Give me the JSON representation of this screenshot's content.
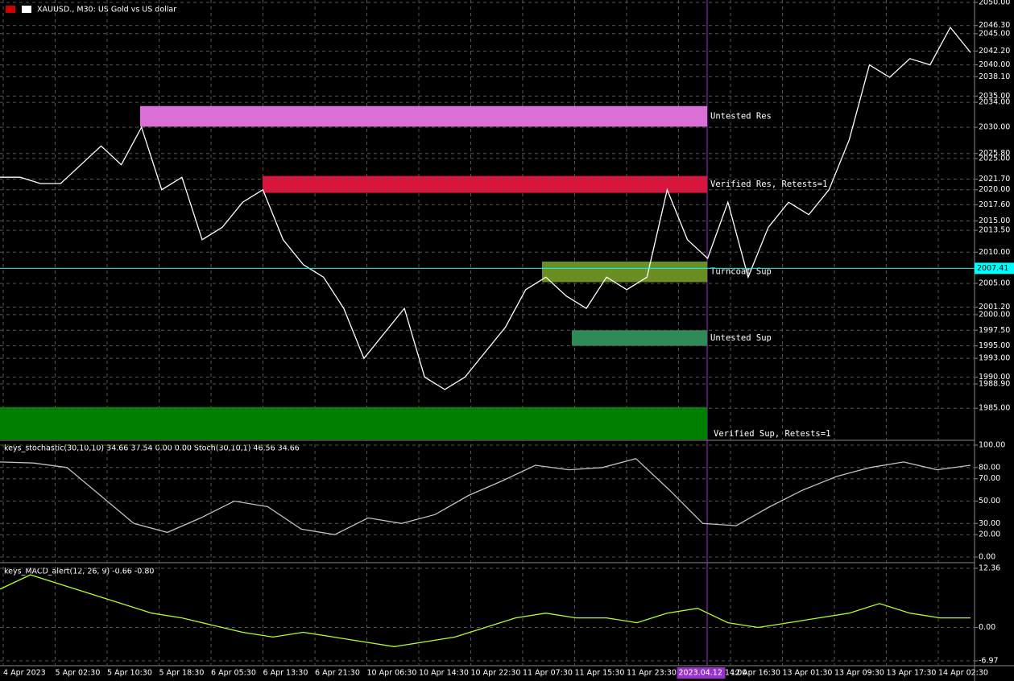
{
  "header": {
    "title": "XAUUSD., M30:  US Gold vs US dollar"
  },
  "price_panel": {
    "ylim": [
      1980,
      2050
    ],
    "yticks": [
      {
        "value": 2050,
        "label": "2050.00"
      },
      {
        "value": 2046.3,
        "label": "2046.30"
      },
      {
        "value": 2045,
        "label": "2045.00"
      },
      {
        "value": 2042.2,
        "label": "2042.20"
      },
      {
        "value": 2040,
        "label": "2040.00"
      },
      {
        "value": 2038.1,
        "label": "2038.10"
      },
      {
        "value": 2035,
        "label": "2035.00"
      },
      {
        "value": 2034,
        "label": "2034.00"
      },
      {
        "value": 2030,
        "label": "2030.00"
      },
      {
        "value": 2025.8,
        "label": "2025.80"
      },
      {
        "value": 2025,
        "label": "2025.00"
      },
      {
        "value": 2021.7,
        "label": "2021.70"
      },
      {
        "value": 2020,
        "label": "2020.00"
      },
      {
        "value": 2017.6,
        "label": "2017.60"
      },
      {
        "value": 2015,
        "label": "2015.00"
      },
      {
        "value": 2013.5,
        "label": "2013.50"
      },
      {
        "value": 2010,
        "label": "2010.00"
      },
      {
        "value": 2005,
        "label": "2005.00"
      },
      {
        "value": 2001.2,
        "label": "2001.20"
      },
      {
        "value": 2000,
        "label": "2000.00"
      },
      {
        "value": 1997.5,
        "label": "1997.50"
      },
      {
        "value": 1995,
        "label": "1995.00"
      },
      {
        "value": 1993,
        "label": "1993.00"
      },
      {
        "value": 1990,
        "label": "1990.00"
      },
      {
        "value": 1988.9,
        "label": "1988.90"
      },
      {
        "value": 1985,
        "label": "1985.00"
      }
    ],
    "current_price": {
      "value": 2007.41,
      "label": "2007.41"
    },
    "close": [
      2022,
      2022,
      2021,
      2021,
      2024,
      2027,
      2024,
      2030,
      2020,
      2022,
      2012,
      2014,
      2018,
      2020,
      2012,
      2008,
      2006,
      2001,
      1993,
      1997,
      2001,
      1990,
      1988,
      1990,
      1994,
      1998,
      2004,
      2006,
      2003,
      2001,
      2006,
      2004,
      2006,
      2020,
      2012,
      2009,
      2018,
      2006,
      2014,
      2018,
      2016,
      2020,
      2028,
      2040,
      2038,
      2041,
      2040,
      2046,
      2042
    ],
    "zones": [
      {
        "label": "Untested Res",
        "lo": 2030.1,
        "hi": 2033.4,
        "color": "#da70d6"
      },
      {
        "label": "Verified Res, Retests=1",
        "lo": 2019.5,
        "hi": 2022.2,
        "color": "#dc143c"
      },
      {
        "label": "Turncoat Sup",
        "lo": 2005.2,
        "hi": 2008.5,
        "color": "#6b8e23"
      },
      {
        "label": "Untested Sup",
        "lo": 1995,
        "hi": 1997.5,
        "color": "#2e8b57"
      },
      {
        "label": "Verified Sup, Retests=1",
        "lo": 1980,
        "hi": 1985.2,
        "color": "#008000"
      }
    ]
  },
  "stoch_panel": {
    "title": "keys_stochastic(30,10,10) 34.66 37.54 0.00 0.00 Stoch(30,10,1) 46.56 34.66",
    "ylim": [
      0,
      100
    ],
    "yticks": [
      {
        "value": 100,
        "label": "100.00"
      },
      {
        "value": 80,
        "label": "80.00"
      },
      {
        "value": 70,
        "label": "70.00"
      },
      {
        "value": 50,
        "label": "50.00"
      },
      {
        "value": 30,
        "label": "30.00"
      },
      {
        "value": 20,
        "label": "20.00"
      },
      {
        "value": 0,
        "label": "0.00"
      }
    ],
    "values": [
      85,
      84,
      80,
      55,
      30,
      22,
      35,
      50,
      45,
      25,
      20,
      35,
      30,
      38,
      55,
      68,
      82,
      78,
      80,
      88,
      60,
      30,
      28,
      45,
      60,
      72,
      80,
      85,
      78,
      82
    ]
  },
  "macd_panel": {
    "title": "keys_MACD_alert(12, 26, 9) -0.66 -0.80",
    "ylim": [
      -6.97,
      12.36
    ],
    "yticks": [
      12.36,
      {
        "value": 0,
        "label": "0.00"
      },
      -6.97
    ],
    "values": [
      8,
      11,
      9,
      7,
      5,
      3,
      2,
      0.5,
      -1,
      -2,
      -1,
      -2,
      -3,
      -4,
      -3,
      -2,
      0,
      2,
      3,
      2,
      2,
      1,
      3,
      4,
      1,
      0,
      1,
      2,
      3,
      5,
      3,
      2,
      2
    ]
  },
  "time_axis": [
    "4 Apr 2023",
    "5 Apr 02:30",
    "5 Apr 10:30",
    "5 Apr 18:30",
    "6 Apr 05:30",
    "6 Apr 13:30",
    "6 Apr 21:30",
    "10 Apr 06:30",
    "10 Apr 14:30",
    "10 Apr 22:30",
    "11 Apr 07:30",
    "11 Apr 15:30",
    "11 Apr 23:30",
    "2023.04.12 14:00",
    "12 Apr 16:30",
    "13 Apr 01:30",
    "13 Apr 09:30",
    "13 Apr 17:30",
    "14 Apr 02:30"
  ]
}
